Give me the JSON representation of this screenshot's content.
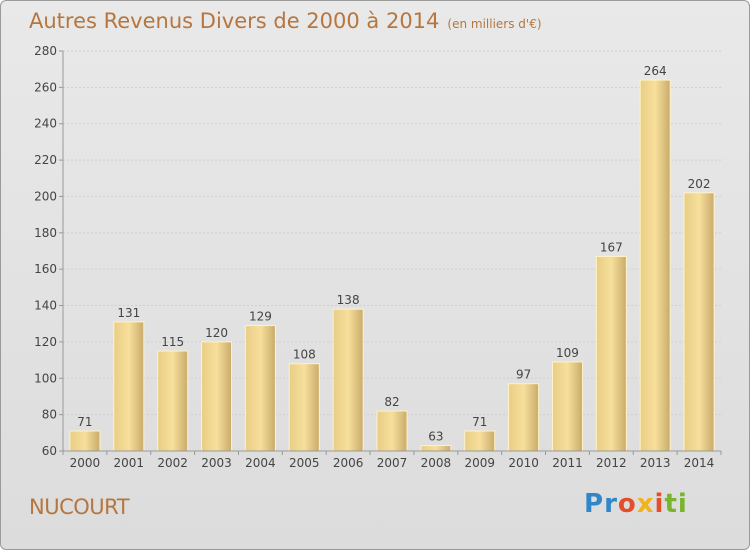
{
  "title": "Autres Revenus Divers de 2000 à 2014",
  "unit": "(en milliers d'€)",
  "place": "NUCOURT",
  "logo": [
    "P",
    "r",
    "o",
    "x",
    "i",
    "t",
    "i"
  ],
  "chart_data": {
    "type": "bar",
    "categories": [
      "2000",
      "2001",
      "2002",
      "2003",
      "2004",
      "2005",
      "2006",
      "2007",
      "2008",
      "2009",
      "2010",
      "2011",
      "2012",
      "2013",
      "2014"
    ],
    "values": [
      71,
      131,
      115,
      120,
      129,
      108,
      138,
      82,
      63,
      71,
      97,
      109,
      167,
      264,
      202
    ],
    "ylim": [
      60,
      280
    ],
    "yticks": [
      60,
      80,
      100,
      120,
      140,
      160,
      180,
      200,
      220,
      240,
      260,
      280
    ],
    "grid": true,
    "colors": {
      "bar_light": "#f7df9c",
      "bar_dark": "#c9ab6a",
      "title": "#b5763f"
    }
  }
}
